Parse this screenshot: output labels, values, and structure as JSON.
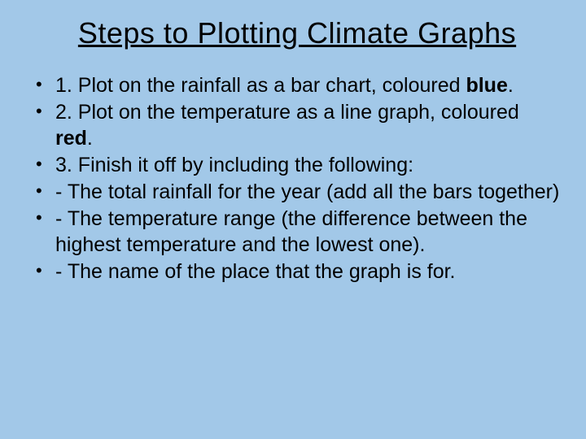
{
  "background_color": "#a2c8e8",
  "text_color": "#000000",
  "font_family": "Comic Sans MS",
  "title": {
    "text": "Steps to Plotting Climate Graphs",
    "fontsize": 36,
    "underline": true,
    "align": "center"
  },
  "bullets": {
    "fontsize": 25,
    "items": [
      {
        "pre": "1. Plot on the rainfall as a bar chart, coloured ",
        "bold": "blue",
        "post": "."
      },
      {
        "pre": "2. Plot on the temperature as a line graph, coloured ",
        "bold": "red",
        "post": "."
      },
      {
        "pre": "3. Finish it off by including the following:",
        "bold": "",
        "post": ""
      },
      {
        "pre": "- The total rainfall for the year (add all the bars together)",
        "bold": "",
        "post": ""
      },
      {
        "pre": "- The temperature range (the difference between the highest temperature and the lowest one).",
        "bold": "",
        "post": ""
      },
      {
        "pre": "- The name of the place that the graph is for.",
        "bold": "",
        "post": ""
      }
    ]
  }
}
